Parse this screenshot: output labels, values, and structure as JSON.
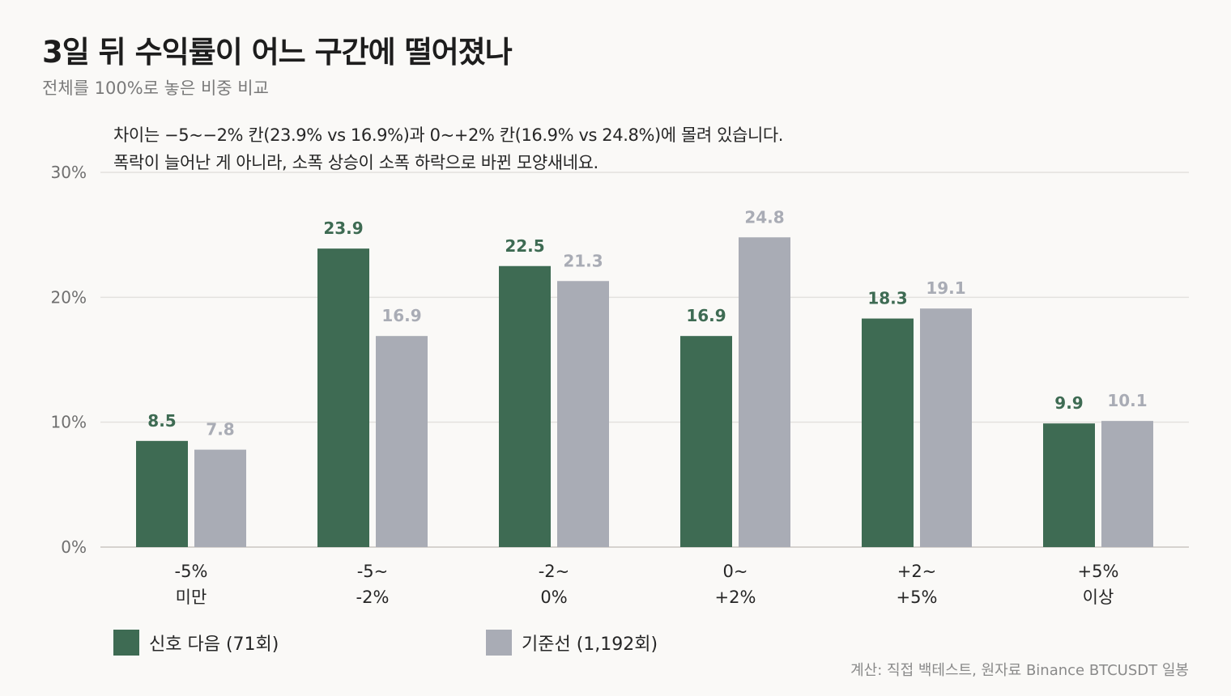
{
  "title": "3일 뒤 수익률이 어느 구간에 떨어졌나",
  "subtitle": "전체를 100%로 놓은 비중 비교",
  "annotation": {
    "line1": "차이는 −5~−2% 칸(23.9% vs 16.9%)과 0~+2% 칸(16.9% vs 24.8%)에 몰려 있습니다.",
    "line2": "폭락이 늘어난 게 아니라, 소폭 상승이 소폭 하락으로 바뀐 모양새네요."
  },
  "legend": {
    "signal": "신호 다음 (71회)",
    "baseline": "기준선 (1,192회)"
  },
  "source": "계산: 직접 백테스트, 원자료 Binance BTCUSDT 일봉",
  "colors": {
    "signal": "#3e6b53",
    "baseline": "#a9acb5",
    "signal_label": "#3e6b53",
    "baseline_label": "#a9acb5",
    "grid": "#e3e1de"
  },
  "chart_data": {
    "type": "bar",
    "categories": [
      [
        "-5%",
        "미만"
      ],
      [
        "-5~",
        "-2%"
      ],
      [
        "-2~",
        "0%"
      ],
      [
        "0~",
        "+2%"
      ],
      [
        "+2~",
        "+5%"
      ],
      [
        "+5%",
        "이상"
      ]
    ],
    "series": [
      {
        "name": "신호 다음 (71회)",
        "values": [
          8.5,
          23.9,
          22.5,
          16.9,
          18.3,
          9.9
        ]
      },
      {
        "name": "기준선 (1,192회)",
        "values": [
          7.8,
          16.9,
          21.3,
          24.8,
          19.1,
          10.1
        ]
      }
    ],
    "value_labels": [
      [
        "8.5",
        "23.9",
        "22.5",
        "16.9",
        "18.3",
        "9.9"
      ],
      [
        "7.8",
        "16.9",
        "21.3",
        "24.8",
        "19.1",
        "10.1"
      ]
    ],
    "yticks": [
      0,
      10,
      20,
      30
    ],
    "ytick_labels": [
      "0%",
      "10%",
      "20%",
      "30%"
    ],
    "ylim": [
      0,
      30
    ],
    "grid": true,
    "legend_position": "bottom-left"
  }
}
